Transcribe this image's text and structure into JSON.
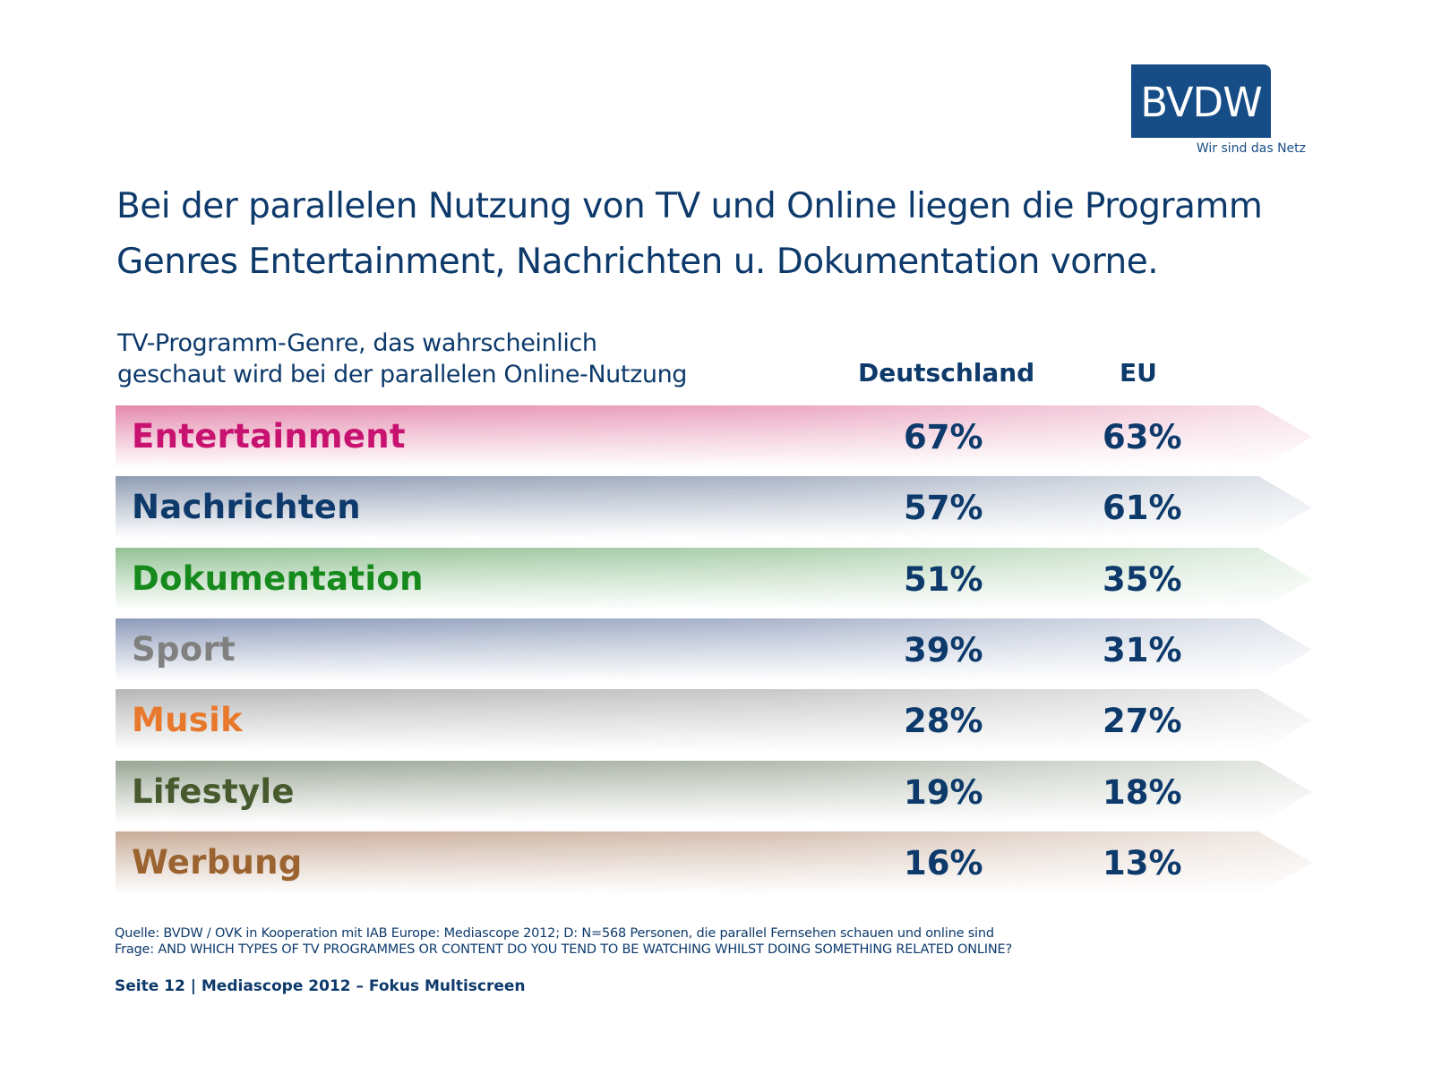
{
  "logo": {
    "text": "BVDW",
    "tagline": "Wir sind das Netz",
    "color": "#174d86"
  },
  "title": "Bei der parallelen Nutzung von TV und Online liegen die Programm Genres Entertainment, Nachrichten u. Dokumentation vorne.",
  "chart_data": {
    "type": "table",
    "title": "TV-Programm-Genre, das wahrscheinlich geschaut wird bei der parallelen Online-Nutzung",
    "subtitle_lines": [
      "TV-Programm-Genre, das wahrscheinlich",
      "geschaut wird bei der parallelen Online-Nutzung"
    ],
    "columns": [
      "Deutschland",
      "EU"
    ],
    "unit": "%",
    "categories": [
      "Entertainment",
      "Nachrichten",
      "Dokumentation",
      "Sport",
      "Musik",
      "Lifestyle",
      "Werbung"
    ],
    "series": [
      {
        "name": "Deutschland",
        "values": [
          67,
          57,
          51,
          39,
          28,
          19,
          16
        ]
      },
      {
        "name": "EU",
        "values": [
          63,
          61,
          35,
          31,
          27,
          18,
          13
        ]
      }
    ],
    "rows": [
      {
        "label": "Entertainment",
        "de": "67%",
        "eu": "63%",
        "label_color": "#c8126f",
        "bar_color": "#e489ac"
      },
      {
        "label": "Nachrichten",
        "de": "57%",
        "eu": "61%",
        "label_color": "#0d3a6b",
        "bar_color": "#8e9bb3"
      },
      {
        "label": "Dokumentation",
        "de": "51%",
        "eu": "35%",
        "label_color": "#168a1c",
        "bar_color": "#92c193"
      },
      {
        "label": "Sport",
        "de": "39%",
        "eu": "31%",
        "label_color": "#808080",
        "bar_color": "#8c9bba"
      },
      {
        "label": "Musik",
        "de": "28%",
        "eu": "27%",
        "label_color": "#e8782c",
        "bar_color": "#b6b6b6"
      },
      {
        "label": "Lifestyle",
        "de": "19%",
        "eu": "18%",
        "label_color": "#465a2e",
        "bar_color": "#9aa595"
      },
      {
        "label": "Werbung",
        "de": "16%",
        "eu": "13%",
        "label_color": "#9b6330",
        "bar_color": "#c8ab98"
      }
    ]
  },
  "footer": {
    "source": "Quelle: BVDW / OVK in Kooperation mit IAB Europe: Mediascope 2012; D: N=568 Personen, die parallel Fernsehen schauen und online sind",
    "question": "Frage: AND WHICH TYPES OF TV PROGRAMMES OR CONTENT DO YOU TEND TO BE WATCHING WHILST DOING SOMETHING RELATED ONLINE?",
    "page": "Seite 12 | Mediascope 2012 – Fokus Multiscreen"
  }
}
